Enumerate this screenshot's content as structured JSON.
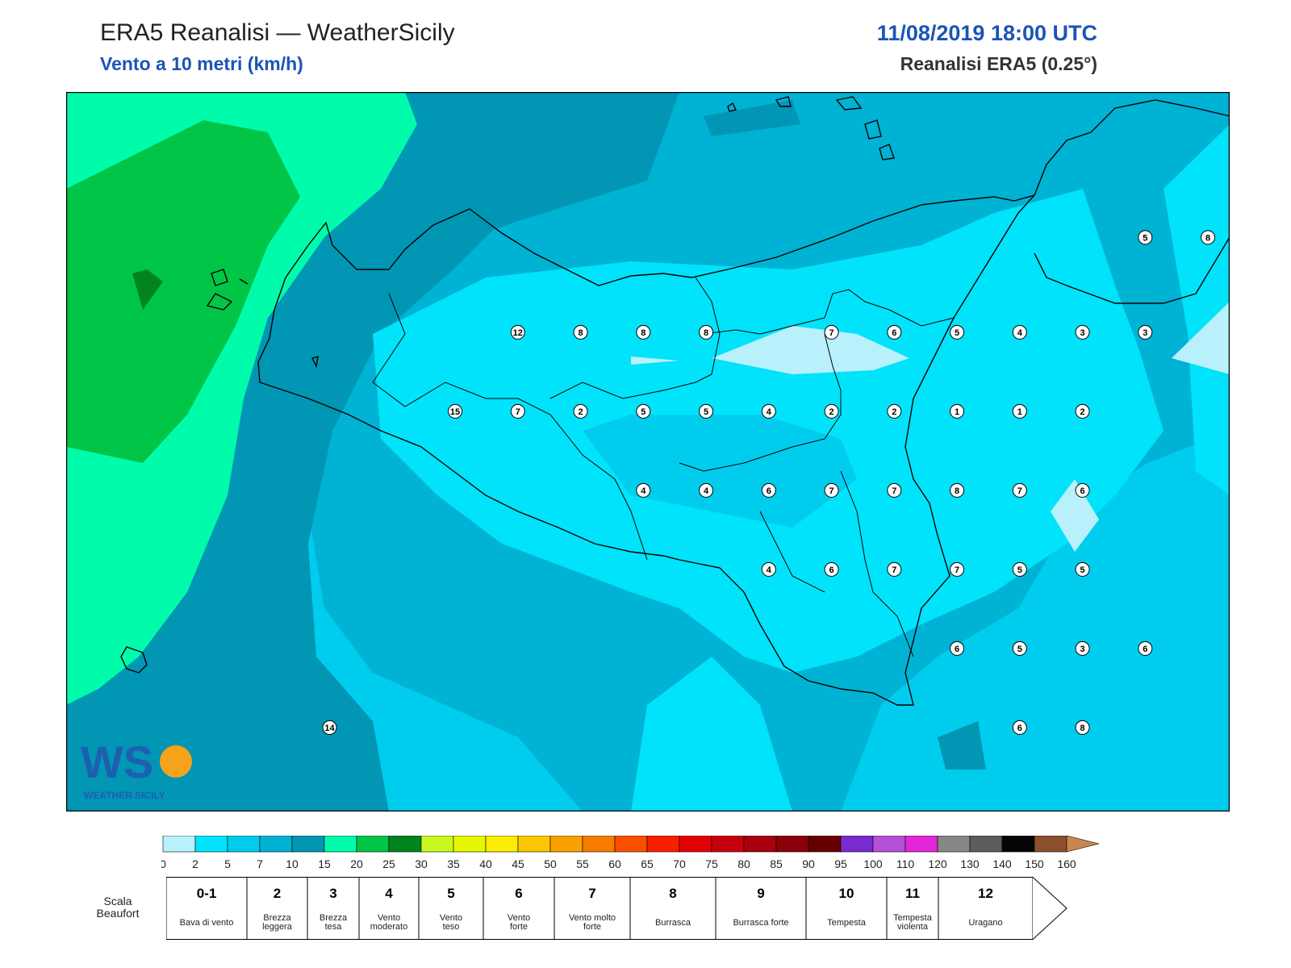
{
  "header": {
    "title": "ERA5 Reanalisi — WeatherSicily",
    "subtitle": "Vento a 10 metri (km/h)",
    "datetime": "11/08/2019 18:00 UTC",
    "model": "Reanalisi ERA5 (0.25°)"
  },
  "logo": {
    "text": "WEATHER SICILY",
    "mark": "WS"
  },
  "colors": {
    "zone_0_2": "#b8f1fb",
    "zone_2_5": "#00e3fa",
    "zone_5_7": "#00cdee",
    "zone_7_10": "#00b2d4",
    "zone_10_15": "#0096b4",
    "zone_15_20": "#00fcaa",
    "zone_20_25": "#00c547",
    "zone_25_30": "#01841e",
    "coastline": "#000000"
  },
  "stations": [
    {
      "v": "12",
      "lon": 13.05,
      "lat": 38.2
    },
    {
      "v": "8",
      "lon": 13.3,
      "lat": 38.2
    },
    {
      "v": "8",
      "lon": 13.55,
      "lat": 38.2
    },
    {
      "v": "8",
      "lon": 13.8,
      "lat": 38.2
    },
    {
      "v": "7",
      "lon": 14.3,
      "lat": 38.2
    },
    {
      "v": "6",
      "lon": 14.55,
      "lat": 38.2
    },
    {
      "v": "5",
      "lon": 14.8,
      "lat": 38.2
    },
    {
      "v": "4",
      "lon": 15.05,
      "lat": 38.2
    },
    {
      "v": "3",
      "lon": 15.3,
      "lat": 38.2
    },
    {
      "v": "3",
      "lon": 15.55,
      "lat": 38.2
    },
    {
      "v": "5",
      "lon": 15.55,
      "lat": 38.5
    },
    {
      "v": "8",
      "lon": 15.8,
      "lat": 38.5
    },
    {
      "v": "15",
      "lon": 12.8,
      "lat": 37.95
    },
    {
      "v": "7",
      "lon": 13.05,
      "lat": 37.95
    },
    {
      "v": "2",
      "lon": 13.3,
      "lat": 37.95
    },
    {
      "v": "5",
      "lon": 13.55,
      "lat": 37.95
    },
    {
      "v": "5",
      "lon": 13.8,
      "lat": 37.95
    },
    {
      "v": "4",
      "lon": 14.05,
      "lat": 37.95
    },
    {
      "v": "2",
      "lon": 14.3,
      "lat": 37.95
    },
    {
      "v": "2",
      "lon": 14.55,
      "lat": 37.95
    },
    {
      "v": "1",
      "lon": 14.8,
      "lat": 37.95
    },
    {
      "v": "1",
      "lon": 15.05,
      "lat": 37.95
    },
    {
      "v": "2",
      "lon": 15.3,
      "lat": 37.95
    },
    {
      "v": "4",
      "lon": 13.55,
      "lat": 37.7
    },
    {
      "v": "4",
      "lon": 13.8,
      "lat": 37.7
    },
    {
      "v": "6",
      "lon": 14.05,
      "lat": 37.7
    },
    {
      "v": "7",
      "lon": 14.3,
      "lat": 37.7
    },
    {
      "v": "7",
      "lon": 14.55,
      "lat": 37.7
    },
    {
      "v": "8",
      "lon": 14.8,
      "lat": 37.7
    },
    {
      "v": "7",
      "lon": 15.05,
      "lat": 37.7
    },
    {
      "v": "6",
      "lon": 15.3,
      "lat": 37.7
    },
    {
      "v": "4",
      "lon": 14.05,
      "lat": 37.45
    },
    {
      "v": "6",
      "lon": 14.3,
      "lat": 37.45
    },
    {
      "v": "7",
      "lon": 14.55,
      "lat": 37.45
    },
    {
      "v": "7",
      "lon": 14.8,
      "lat": 37.45
    },
    {
      "v": "5",
      "lon": 15.05,
      "lat": 37.45
    },
    {
      "v": "5",
      "lon": 15.3,
      "lat": 37.45
    },
    {
      "v": "6",
      "lon": 14.8,
      "lat": 37.2
    },
    {
      "v": "5",
      "lon": 15.05,
      "lat": 37.2
    },
    {
      "v": "3",
      "lon": 15.3,
      "lat": 37.2
    },
    {
      "v": "6",
      "lon": 15.55,
      "lat": 37.2
    },
    {
      "v": "6",
      "lon": 15.05,
      "lat": 36.95
    },
    {
      "v": "8",
      "lon": 15.3,
      "lat": 36.95
    },
    {
      "v": "14",
      "lon": 12.3,
      "lat": 36.95
    }
  ],
  "colorbar": {
    "ticks": [
      "0",
      "2",
      "5",
      "7",
      "10",
      "15",
      "20",
      "25",
      "30",
      "35",
      "40",
      "45",
      "50",
      "55",
      "60",
      "65",
      "70",
      "75",
      "80",
      "85",
      "90",
      "95",
      "100",
      "110",
      "120",
      "130",
      "140",
      "150",
      "160"
    ],
    "colors": [
      "#b8f1fb",
      "#00e3fa",
      "#00cdee",
      "#00b2d4",
      "#0096b4",
      "#00fcaa",
      "#00c547",
      "#01841e",
      "#c8f91f",
      "#e6f800",
      "#fbee00",
      "#fac700",
      "#f9a100",
      "#f97b00",
      "#f84f00",
      "#f61f00",
      "#e10003",
      "#c8000d",
      "#a8000f",
      "#8a0008",
      "#660000",
      "#7a2bd0",
      "#b64fd8",
      "#e227d8",
      "#878787",
      "#5c5c5c",
      "#050505",
      "#8c4f2b",
      "#c98650"
    ]
  },
  "beaufort": {
    "label": "Scala Beaufort",
    "classes": [
      {
        "n": "0-1",
        "desc": "Bava di vento"
      },
      {
        "n": "2",
        "desc": "Brezza leggera"
      },
      {
        "n": "3",
        "desc": "Brezza tesa"
      },
      {
        "n": "4",
        "desc": "Vento moderato"
      },
      {
        "n": "5",
        "desc": "Vento teso"
      },
      {
        "n": "6",
        "desc": "Vento forte"
      },
      {
        "n": "7",
        "desc": "Vento molto forte"
      },
      {
        "n": "8",
        "desc": "Burrasca"
      },
      {
        "n": "9",
        "desc": "Burrasca forte"
      },
      {
        "n": "10",
        "desc": "Tempesta"
      },
      {
        "n": "11",
        "desc": "Tempesta violenta"
      },
      {
        "n": "12",
        "desc": "Uragano"
      }
    ]
  }
}
